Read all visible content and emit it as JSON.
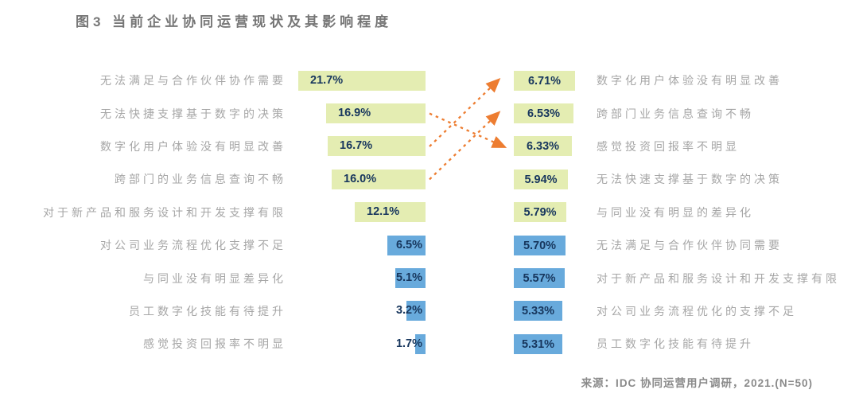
{
  "colors": {
    "green_bar": "#e4edb2",
    "blue_bar": "#68aadc",
    "value_text": "#17365d",
    "label_gray": "#a6a6a6",
    "title_gray": "#767676",
    "arrow_orange": "#ED7D31"
  },
  "chart_data": {
    "type": "bar",
    "orientation": "horizontal",
    "title": "图3 当前企业协同运营现状及其影响程度",
    "source": "来源：IDC 协同运营用户调研，2021.(N=50)",
    "unit": "%",
    "legend_position": "none",
    "grid": false,
    "left_series": {
      "name": "当前企业协同运营现状",
      "axis_range": [
        0,
        21.7
      ],
      "items": [
        {
          "label": "无法满足与合作伙伴协作需要",
          "value": 21.7,
          "display": "21.7%",
          "color": "green"
        },
        {
          "label": "无法快捷支撑基于数字的决策",
          "value": 16.9,
          "display": "16.9%",
          "color": "green"
        },
        {
          "label": "数字化用户体验没有明显改善",
          "value": 16.7,
          "display": "16.7%",
          "color": "green"
        },
        {
          "label": "跨部门的业务信息查询不畅",
          "value": 16.0,
          "display": "16.0%",
          "color": "green"
        },
        {
          "label": "对于新产品和服务设计和开发支撑有限",
          "value": 12.1,
          "display": "12.1%",
          "color": "green"
        },
        {
          "label": "对公司业务流程优化支撑不足",
          "value": 6.5,
          "display": "6.5%",
          "color": "blue"
        },
        {
          "label": "与同业没有明显差异化",
          "value": 5.1,
          "display": "5.1%",
          "color": "blue"
        },
        {
          "label": "员工数字化技能有待提升",
          "value": 3.2,
          "display": "3.2%",
          "color": "blue"
        },
        {
          "label": "感觉投资回报率不明显",
          "value": 1.7,
          "display": "1.7%",
          "color": "blue"
        }
      ]
    },
    "right_series": {
      "name": "影响程度",
      "axis_range": [
        0,
        6.71
      ],
      "items": [
        {
          "label": "数字化用户体验没有明显改善",
          "value": 6.71,
          "display": "6.71%",
          "color": "green"
        },
        {
          "label": "跨部门业务信息查询不畅",
          "value": 6.53,
          "display": "6.53%",
          "color": "green"
        },
        {
          "label": "感觉投资回报率不明显",
          "value": 6.33,
          "display": "6.33%",
          "color": "green"
        },
        {
          "label": "无法快速支撑基于数字的决策",
          "value": 5.94,
          "display": "5.94%",
          "color": "green"
        },
        {
          "label": "与同业没有明显的差异化",
          "value": 5.79,
          "display": "5.79%",
          "color": "green"
        },
        {
          "label": "无法满足与合作伙伴协同需要",
          "value": 5.7,
          "display": "5.70%",
          "color": "blue"
        },
        {
          "label": "对于新产品和服务设计和开发支撑有限",
          "value": 5.57,
          "display": "5.57%",
          "color": "blue"
        },
        {
          "label": "对公司业务流程优化的支撑不足",
          "value": 5.33,
          "display": "5.33%",
          "color": "blue"
        },
        {
          "label": "员工数字化技能有待提升",
          "value": 5.31,
          "display": "5.31%",
          "color": "blue"
        }
      ]
    },
    "arrows": [
      {
        "from_left_index": 2,
        "to_right_index": 0
      },
      {
        "from_left_index": 3,
        "to_right_index": 1
      },
      {
        "from_left_index": 1,
        "to_right_index": 2
      }
    ]
  }
}
